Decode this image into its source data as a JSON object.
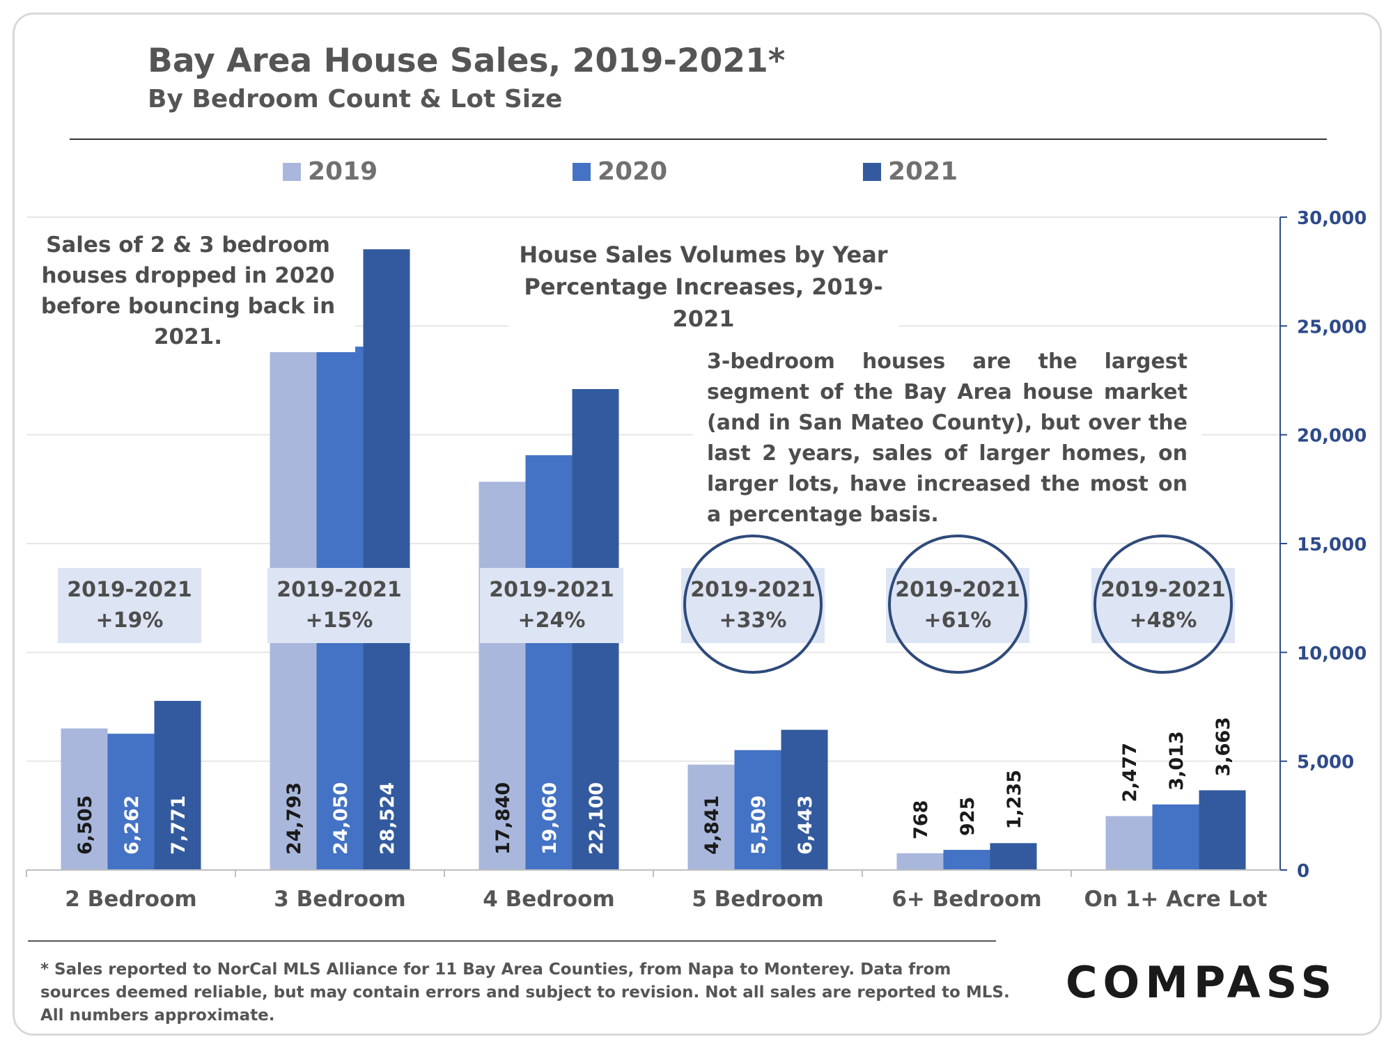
{
  "title": "Bay Area House Sales, 2019-2021*",
  "subtitle": "By Bedroom Count & Lot Size",
  "legend": [
    {
      "label": "2019",
      "color": "#a9b7dc"
    },
    {
      "label": "2020",
      "color": "#4472c4"
    },
    {
      "label": "2021",
      "color": "#335a9e"
    }
  ],
  "notes": {
    "left": "Sales of 2 & 3 bedroom houses dropped in 2020 before bouncing back in 2021.",
    "center": "House Sales Volumes by Year Percentage Increases, 2019-2021",
    "right": "3-bedroom houses are the largest segment of the Bay Area house market (and in San Mateo County), but over the last 2 years, sales of larger homes, on larger lots, have increased the most on a percentage basis."
  },
  "percent_changes": [
    {
      "period": "2019-2021",
      "change": "+19%",
      "circled": false
    },
    {
      "period": "2019-2021",
      "change": "+15%",
      "circled": false
    },
    {
      "period": "2019-2021",
      "change": "+24%",
      "circled": false
    },
    {
      "period": "2019-2021",
      "change": "+33%",
      "circled": true
    },
    {
      "period": "2019-2021",
      "change": "+61%",
      "circled": true
    },
    {
      "period": "2019-2021",
      "change": "+48%",
      "circled": true
    }
  ],
  "chart_data": {
    "type": "bar",
    "categories": [
      "2 Bedroom",
      "3 Bedroom",
      "4 Bedroom",
      "5 Bedroom",
      "6+ Bedroom",
      "On 1+ Acre Lot"
    ],
    "series": [
      {
        "name": "2019",
        "values": [
          6505,
          24793,
          17840,
          4841,
          768,
          2477
        ],
        "labels": [
          "6,505",
          "24,793",
          "17,840",
          "4,841",
          "768",
          "2,477"
        ]
      },
      {
        "name": "2020",
        "values": [
          6262,
          24050,
          19060,
          5509,
          925,
          3013
        ],
        "labels": [
          "6,262",
          "24,050",
          "19,060",
          "5,509",
          "925",
          "3,013"
        ]
      },
      {
        "name": "2021",
        "values": [
          7771,
          28524,
          22100,
          6443,
          1235,
          3663
        ],
        "labels": [
          "7,771",
          "28,524",
          "22,100",
          "6,443",
          "1,235",
          "3,663"
        ]
      }
    ],
    "ylim": [
      0,
      30000
    ],
    "yticks": [
      0,
      5000,
      10000,
      15000,
      20000,
      25000,
      30000
    ],
    "ytick_labels": [
      "0",
      "5,000",
      "10,000",
      "15,000",
      "20,000",
      "25,000",
      "30,000"
    ],
    "yaxis_side": "right",
    "grid": true,
    "legend_position": "top"
  },
  "footnote": "* Sales reported to NorCal MLS Alliance for 11 Bay Area Counties, from Napa to Monterey. Data from sources deemed reliable, but may contain errors and subject to revision.  Not all sales are reported to MLS. All numbers approximate.",
  "logo": "COMPASS"
}
